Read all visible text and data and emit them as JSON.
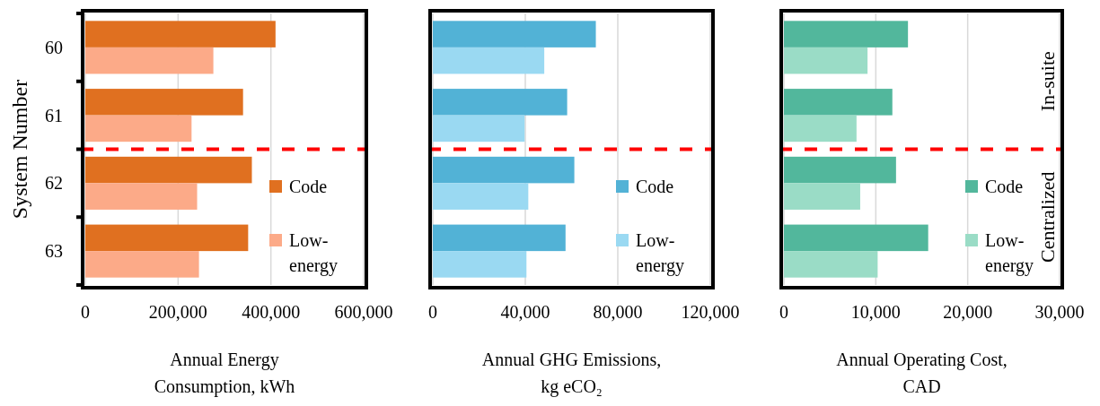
{
  "chart_data": [
    {
      "type": "bar",
      "orientation": "horizontal",
      "categories": [
        "60",
        "61",
        "62",
        "63"
      ],
      "ylabel": "System Number",
      "xlabel": "Annual Energy\nConsumption, kWh",
      "xlim": [
        0,
        600000
      ],
      "xticks": [
        {
          "value": 0,
          "label": "0"
        },
        {
          "value": 200000,
          "label": "200,000"
        },
        {
          "value": 400000,
          "label": "400,000"
        },
        {
          "value": 600000,
          "label": "600,000"
        }
      ],
      "grid": "x",
      "legend": "bottom right",
      "series": [
        {
          "name": "Code",
          "color": "#e07020",
          "values": [
            410000,
            340000,
            359000,
            351000
          ]
        },
        {
          "name": "Low-energy",
          "color": "#fcaa88",
          "values": [
            276000,
            229000,
            241000,
            245000
          ]
        }
      ]
    },
    {
      "type": "bar",
      "orientation": "horizontal",
      "categories": [
        null,
        null,
        null,
        null
      ],
      "tick_labels": "x",
      "xlabel": "Annual GHG Emissions,\nkg eCO₂",
      "xlim": [
        0,
        120000
      ],
      "xticks": [
        {
          "value": 0,
          "label": "0"
        },
        {
          "value": 40000,
          "label": "40,000"
        },
        {
          "value": 80000,
          "label": "80,000"
        },
        {
          "value": 120000,
          "label": "120,000"
        }
      ],
      "grid": "x",
      "legend": "bottom right",
      "series": [
        {
          "name": "Code",
          "color": "#52b2d6",
          "values": [
            70500,
            58100,
            61200,
            57400
          ]
        },
        {
          "name": "Low-energy",
          "color": "#9ad9f2",
          "values": [
            48200,
            39700,
            41300,
            40500
          ]
        }
      ]
    },
    {
      "type": "bar",
      "orientation": "horizontal",
      "categories": [
        null,
        null,
        null,
        null
      ],
      "tick_labels": "x",
      "xlabel": "Annual Operating Cost,\nCAD",
      "xlim": [
        0,
        30000
      ],
      "xticks": [
        {
          "value": 0,
          "label": "0"
        },
        {
          "value": 10000,
          "label": "10,000"
        },
        {
          "value": 20000,
          "label": "20,000"
        },
        {
          "value": 30000,
          "label": "30,000"
        }
      ],
      "grid": "x",
      "legend": "bottom right",
      "series": [
        {
          "name": "Code",
          "color": "#52b79c",
          "values": [
            13500,
            11800,
            12200,
            15700
          ]
        },
        {
          "name": "Low-energy",
          "color": "#9adcc6",
          "values": [
            9100,
            7900,
            8300,
            10200
          ]
        }
      ],
      "annotations": [
        "In-suite",
        "Centralized"
      ]
    }
  ]
}
